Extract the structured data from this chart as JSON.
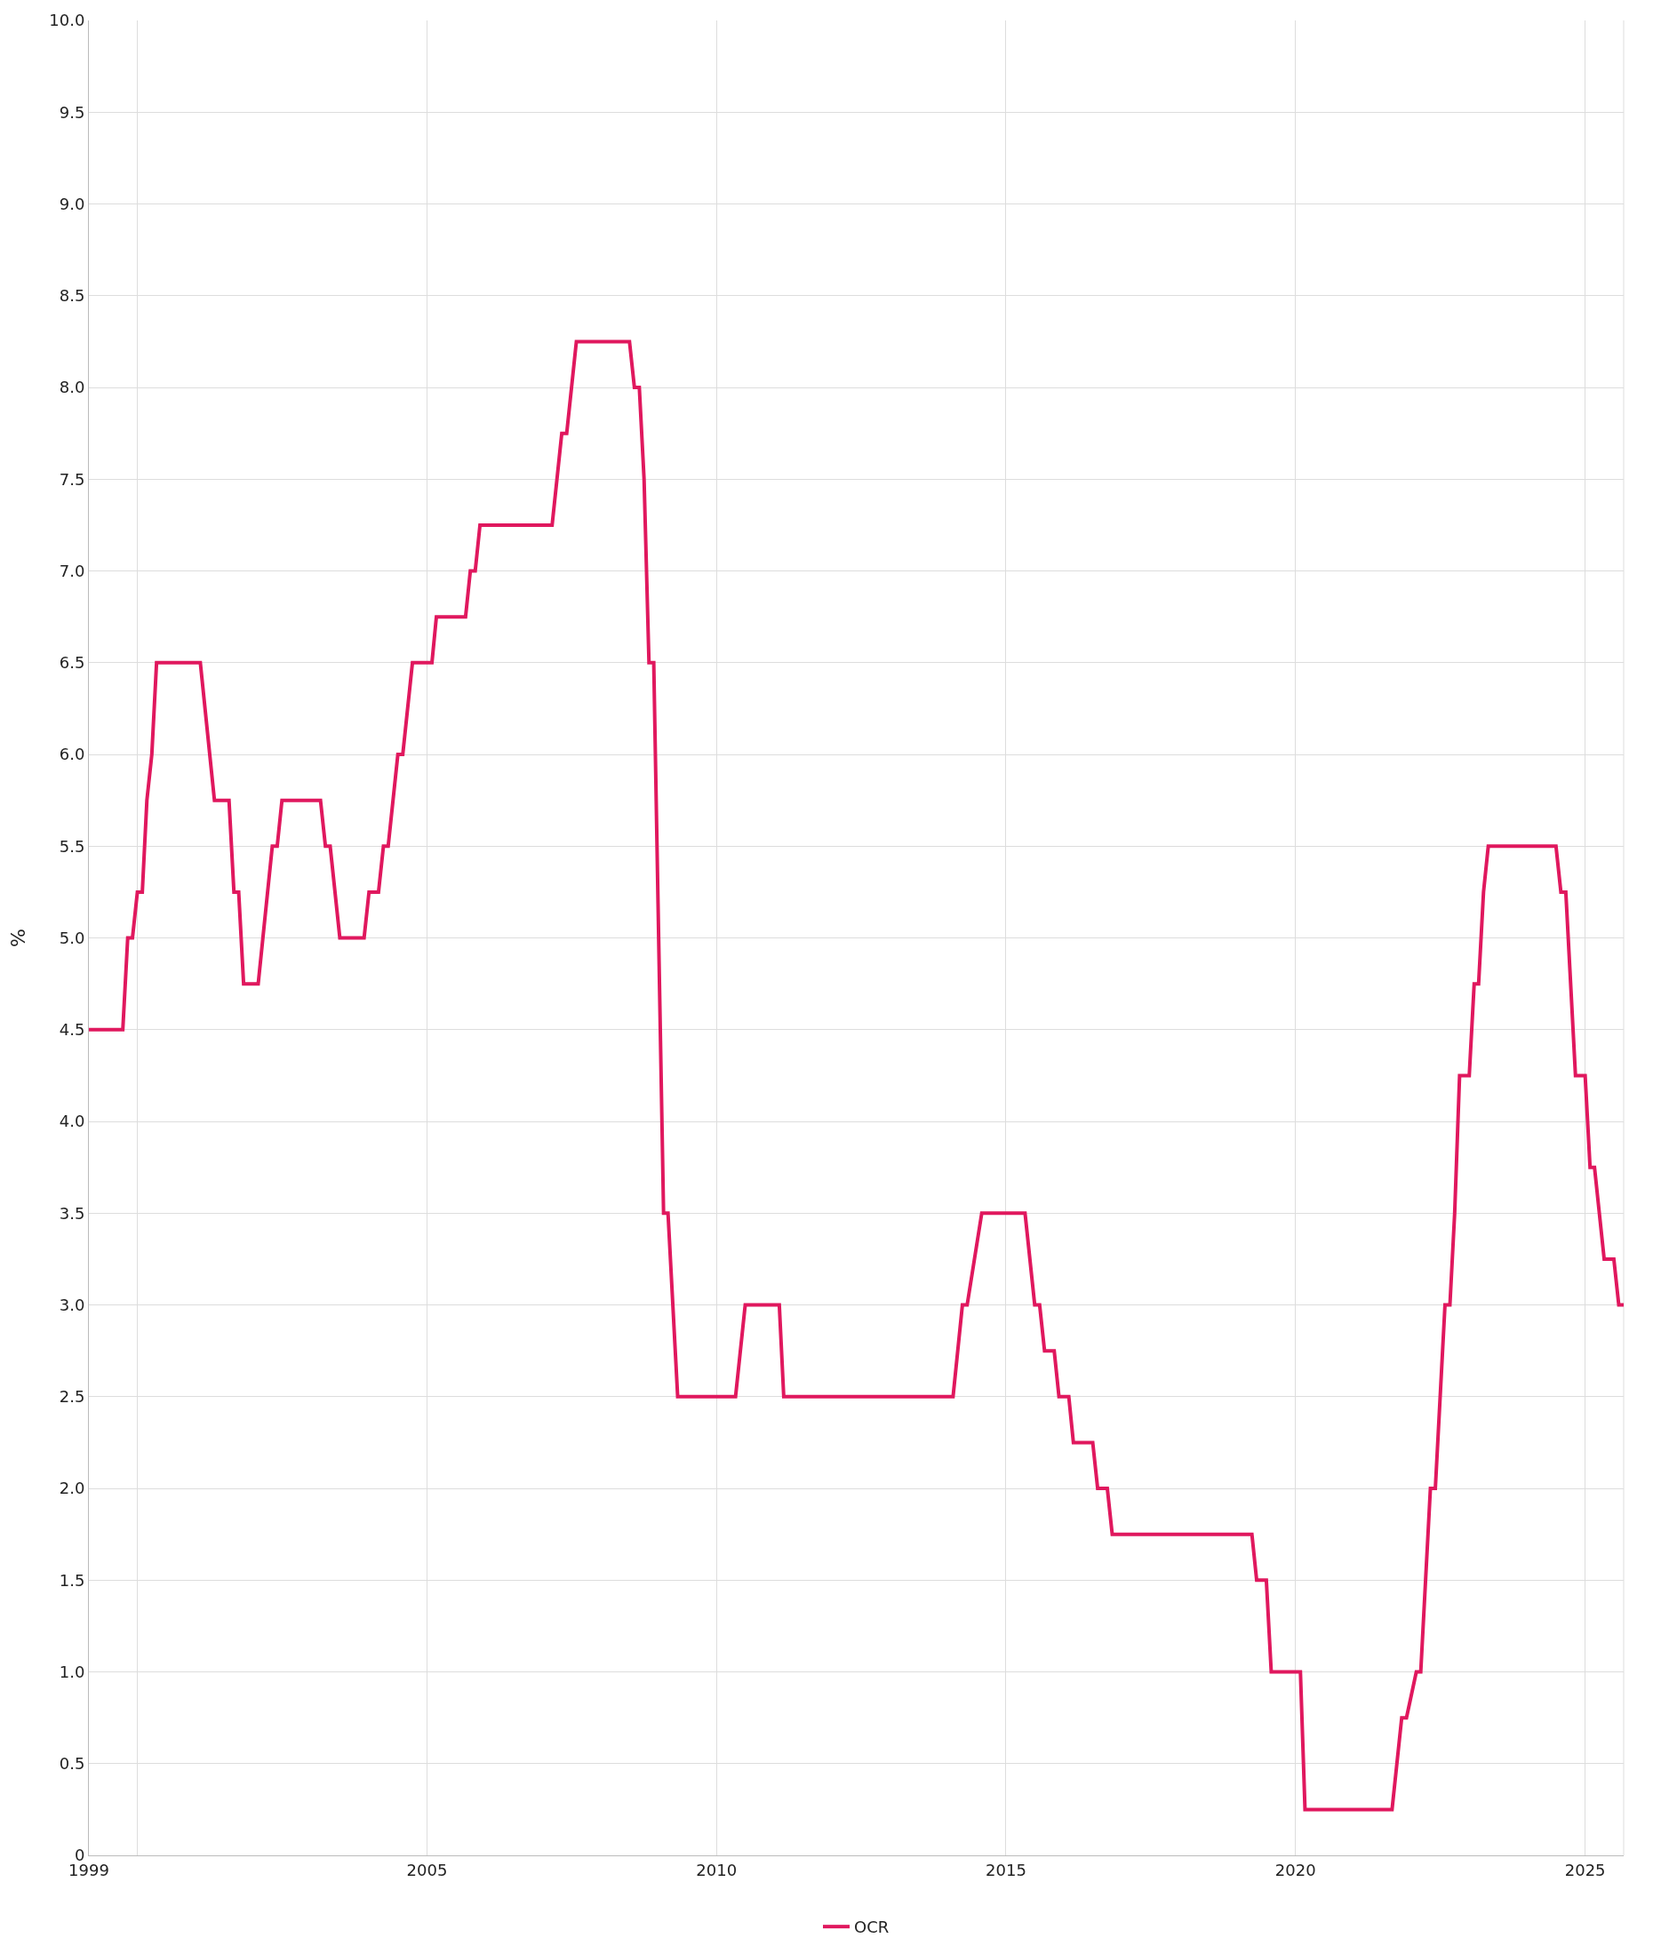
{
  "chart_data": {
    "type": "line",
    "ylabel": "%",
    "x": [
      "1999-03",
      "1999-10",
      "1999-11",
      "1999-12",
      "2000-01",
      "2000-02",
      "2000-03",
      "2000-04",
      "2000-05",
      "2001-02",
      "2001-05",
      "2001-08",
      "2001-09",
      "2001-10",
      "2001-11",
      "2002-02",
      "2002-05",
      "2002-06",
      "2002-07",
      "2003-03",
      "2003-04",
      "2003-05",
      "2003-07",
      "2003-12",
      "2004-01",
      "2004-03",
      "2004-04",
      "2004-05",
      "2004-07",
      "2004-08",
      "2004-10",
      "2005-02",
      "2005-03",
      "2005-09",
      "2005-10",
      "2005-11",
      "2005-12",
      "2007-03",
      "2007-05",
      "2007-06",
      "2007-08",
      "2008-07",
      "2008-08",
      "2008-09",
      "2008-10",
      "2008-11",
      "2008-12",
      "2009-02",
      "2009-03",
      "2009-05",
      "2010-05",
      "2010-07",
      "2011-02",
      "2011-03",
      "2014-02",
      "2014-04",
      "2014-05",
      "2014-08",
      "2015-05",
      "2015-07",
      "2015-08",
      "2015-09",
      "2015-11",
      "2015-12",
      "2016-02",
      "2016-03",
      "2016-07",
      "2016-08",
      "2016-10",
      "2016-11",
      "2019-04",
      "2019-05",
      "2019-07",
      "2019-08",
      "2020-02",
      "2020-03",
      "2021-09",
      "2021-11",
      "2021-12",
      "2022-02",
      "2022-03",
      "2022-05",
      "2022-06",
      "2022-08",
      "2022-09",
      "2022-10",
      "2022-11",
      "2023-01",
      "2023-02",
      "2023-03",
      "2023-04",
      "2023-05",
      "2024-07",
      "2024-08",
      "2024-09",
      "2024-11",
      "2025-01",
      "2025-02",
      "2025-03",
      "2025-05",
      "2025-07",
      "2025-08",
      "2025-09"
    ],
    "series": [
      {
        "name": "OCR",
        "color": "#e0185e",
        "values": [
          4.5,
          4.5,
          5.0,
          5.0,
          5.25,
          5.25,
          5.75,
          6.0,
          6.5,
          6.5,
          5.75,
          5.75,
          5.25,
          5.25,
          4.75,
          4.75,
          5.5,
          5.5,
          5.75,
          5.75,
          5.5,
          5.5,
          5.0,
          5.0,
          5.25,
          5.25,
          5.5,
          5.5,
          6.0,
          6.0,
          6.5,
          6.5,
          6.75,
          6.75,
          7.0,
          7.0,
          7.25,
          7.25,
          7.75,
          7.75,
          8.25,
          8.25,
          8.0,
          8.0,
          7.5,
          6.5,
          6.5,
          3.5,
          3.5,
          2.5,
          2.5,
          3.0,
          3.0,
          2.5,
          2.5,
          3.0,
          3.0,
          3.5,
          3.5,
          3.0,
          3.0,
          2.75,
          2.75,
          2.5,
          2.5,
          2.25,
          2.25,
          2.0,
          2.0,
          1.75,
          1.75,
          1.5,
          1.5,
          1.0,
          1.0,
          0.25,
          0.25,
          0.75,
          0.75,
          1.0,
          1.0,
          2.0,
          2.0,
          3.0,
          3.0,
          3.5,
          4.25,
          4.25,
          4.75,
          4.75,
          5.25,
          5.5,
          5.5,
          5.25,
          5.25,
          4.25,
          4.25,
          3.75,
          3.75,
          3.25,
          3.25,
          3.0,
          3.0
        ]
      }
    ],
    "xlim": [
      "1999-03",
      "2025-09"
    ],
    "xticks": [
      {
        "value": "1999-03",
        "label": "1999"
      },
      {
        "value": "2000-01",
        "label": null
      },
      {
        "value": "2005-01",
        "label": "2005"
      },
      {
        "value": "2010-01",
        "label": "2010"
      },
      {
        "value": "2015-01",
        "label": "2015"
      },
      {
        "value": "2020-01",
        "label": "2020"
      },
      {
        "value": "2025-01",
        "label": "2025"
      }
    ],
    "ylim": [
      0,
      10
    ],
    "yticks": [
      0,
      0.5,
      {
        "value": 1,
        "label": "1.0"
      },
      1.5,
      {
        "value": 2,
        "label": "2.0"
      },
      2.5,
      {
        "value": 3,
        "label": "3.0"
      },
      3.5,
      {
        "value": 4,
        "label": "4.0"
      },
      4.5,
      {
        "value": 5,
        "label": "5.0"
      },
      5.5,
      {
        "value": 6,
        "label": "6.0"
      },
      6.5,
      {
        "value": 7,
        "label": "7.0"
      },
      7.5,
      {
        "value": 8,
        "label": "8.0"
      },
      8.5,
      {
        "value": 9,
        "label": "9.0"
      },
      9.5,
      {
        "value": 10,
        "label": "10.0"
      }
    ],
    "grid": true,
    "legend": "bottom",
    "marker": "none",
    "line_style": "solid"
  }
}
